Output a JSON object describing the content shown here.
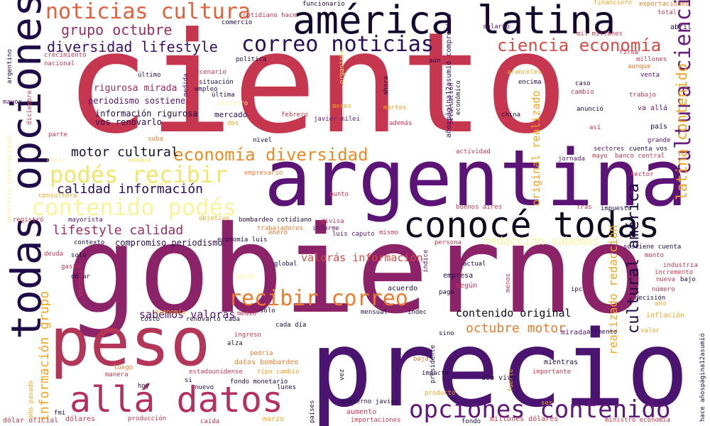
{
  "palette": {
    "deep_purple": "#1e0b47",
    "purple": "#5b1476",
    "magenta": "#8c2368",
    "crimson": "#c6374f",
    "orange": "#ee7a2a",
    "amber": "#f4a41e",
    "yellow": "#f3e568",
    "pale_yellow": "#f9f39a"
  },
  "words": [
    "ciento",
    "gobierno",
    "precio",
    "argentina",
    "peso",
    "todas opciones",
    "américa latina",
    "conocé todas",
    "allá datos",
    "opciones contenido",
    "contenido podés",
    "podés recibir",
    "noticias cultura",
    "correo noticias",
    "recibir correo",
    "cultura ciencia",
    "economía diversidad",
    "ciencia economía",
    "diversidad lifestyle",
    "grupo octubre",
    "motor cultural",
    "calidad información",
    "lifestyle calidad",
    "latina contenido",
    "cultural américa",
    "información grupo",
    "octubre motor",
    "contenido original",
    "sabemos valorás",
    "valorás información",
    "realizado redacción",
    "redacción sabemos",
    "original realizado",
    "compromiso periodismo",
    "rigurosa mirada",
    "periodismo sostiene",
    "información rigurosa",
    "vos renovarlo",
    "mercado",
    "funcionario",
    "financiero",
    "exportaciones",
    "total",
    "abril",
    "salario",
    "mil millones",
    "comercio",
    "cotidiano hace",
    "política",
    "crecimiento",
    "nacional",
    "argentino",
    "mayor",
    "diciembre",
    "último",
    "medida",
    "escenario",
    "situación",
    "empleo",
    "última",
    "ministro",
    "aún",
    "añospágina12asumió compromiso",
    "organismo",
    "ahora",
    "meses",
    "martes",
    "febrero",
    "javier milei",
    "además",
    "económico",
    "devaluación",
    "aranceles",
    "encima",
    "caso",
    "cambio",
    "firma",
    "millones",
    "aunque",
    "venta",
    "trabajo",
    "anunció",
    "china",
    "va allá",
    "así",
    "país",
    "dos",
    "suba",
    "nivel",
    "parte",
    "actividad",
    "sectores",
    "mayo",
    "banco central",
    "cuenta vos",
    "grande",
    "jornada",
    "sector",
    "semana",
    "decir",
    "empresario",
    "monetario internacional",
    "consumo",
    "consultora",
    "punto",
    "buenos aires",
    "impuesto",
    "tras",
    "objetivo",
    "registró",
    "mayorista",
    "informe",
    "bombardeo cotidiano",
    "divisa",
    "trabajadores",
    "enero",
    "luis caputo",
    "mismo",
    "contexto",
    "economía luis",
    "persona",
    "sostiene cuenta",
    "deuda",
    "solo",
    "gasto",
    "global",
    "índice",
    "actual",
    "monto",
    "industria",
    "incremento",
    "nueva",
    "bajo",
    "número",
    "dólar",
    "unido",
    "empresa",
    "según",
    "menos",
    "ipc",
    "decisión",
    "viernes",
    "acuerdo",
    "pago",
    "año",
    "hace añospágina12asumió",
    "economía",
    "costo",
    "renovarlo cada",
    "sólo",
    "medio",
    "mensual",
    "indec",
    "inflación",
    "ingreso",
    "cada día",
    "sino",
    "alimento",
    "valor",
    "alza",
    "mirada va",
    "podría",
    "datos bombardeo",
    "estadounidense",
    "presidente",
    "baja",
    "impacto",
    "mientras",
    "luego",
    "día vivo",
    "importante",
    "si",
    "tipo cambio",
    "vez",
    "hoy",
    "nuevo",
    "fondo monetario",
    "lunes",
    "año pasado",
    "producto",
    "fuerte",
    "manera",
    "gobierno javier",
    "fmi",
    "producción",
    "aumento",
    "ser",
    "dólares",
    "caída",
    "marzo",
    "importaciones",
    "fondo",
    "millones dólares",
    "ministro economía",
    "dólar oficial",
    "países",
    "mes"
  ]
}
